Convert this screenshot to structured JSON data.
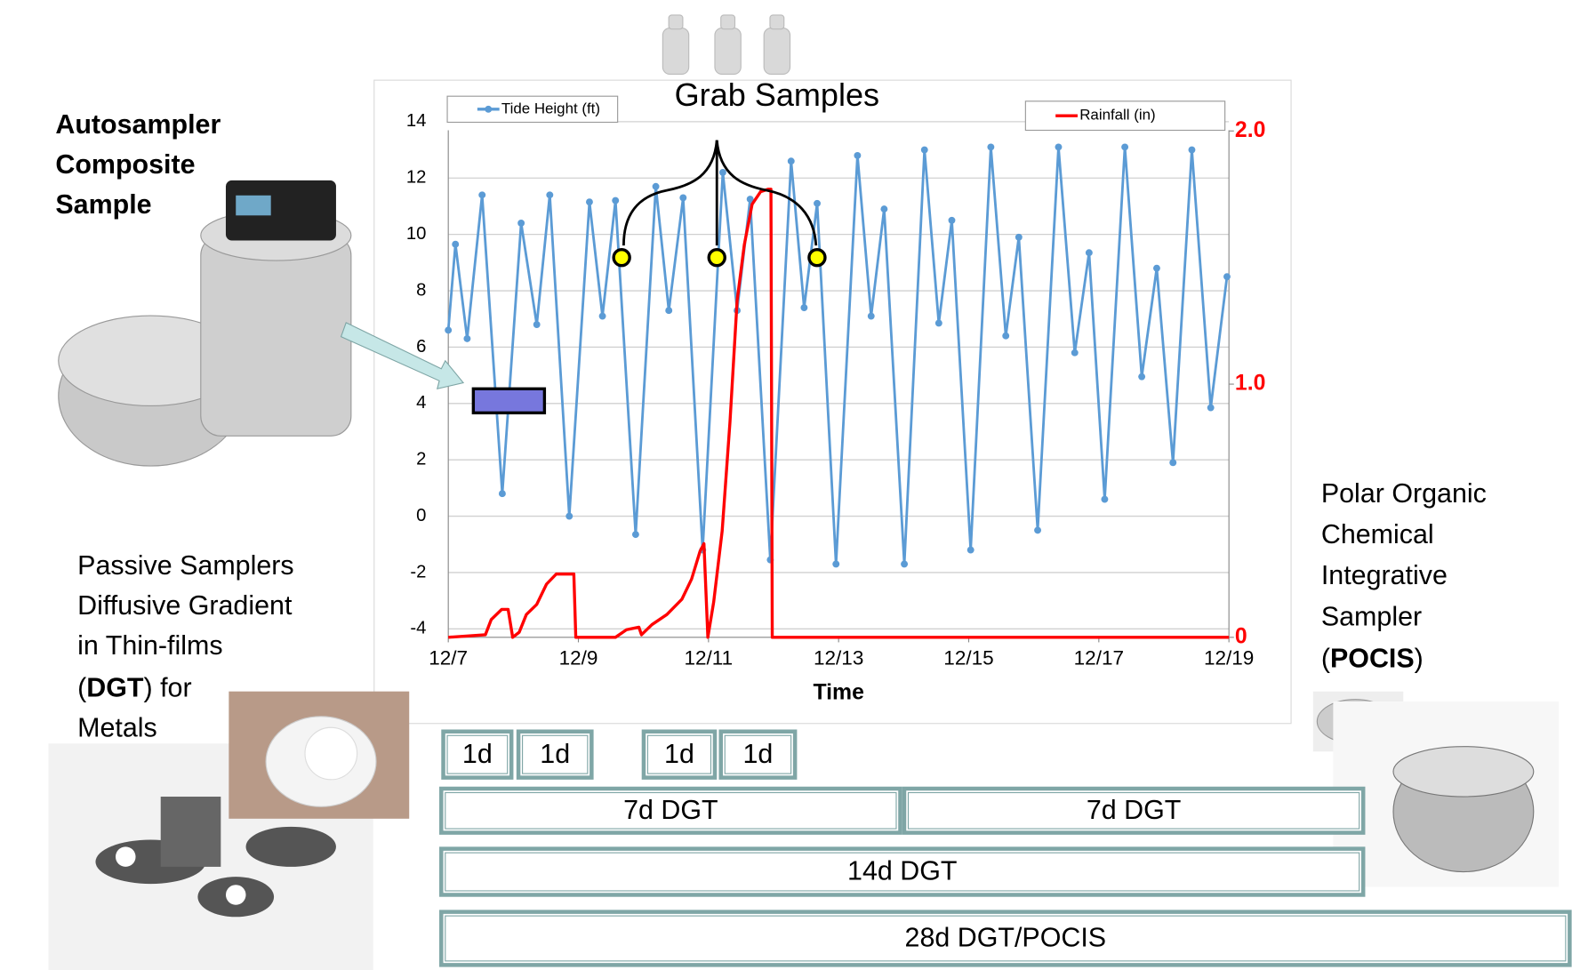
{
  "chart_data": {
    "type": "line",
    "x_title": "Time",
    "xlim": [
      0,
      12
    ],
    "xticks": [
      {
        "value": 0,
        "label": "12/7"
      },
      {
        "value": 2,
        "label": "12/9"
      },
      {
        "value": 4,
        "label": "12/11"
      },
      {
        "value": 6,
        "label": "12/13"
      },
      {
        "value": 8,
        "label": "12/15"
      },
      {
        "value": 10,
        "label": "12/17"
      },
      {
        "value": 12,
        "label": "12/19"
      }
    ],
    "ylim": [
      -4.3,
      14.3
    ],
    "yticks": [
      -4,
      -2,
      0,
      2,
      4,
      6,
      8,
      10,
      12,
      14
    ],
    "y2lim": [
      0,
      2.07
    ],
    "y2ticks": [
      0,
      {
        "value": 1,
        "label": "1.0"
      },
      {
        "value": 2,
        "label": "2.0"
      }
    ],
    "grid": true,
    "series": [
      {
        "name": "Tide Height (ft)",
        "color": "#5b9bd5",
        "x": [
          0,
          0.11,
          0.29,
          0.52,
          0.83,
          1.12,
          1.36,
          1.56,
          1.86,
          2.17,
          2.37,
          2.57,
          2.88,
          3.19,
          3.39,
          3.61,
          3.91,
          4.22,
          4.44,
          4.64,
          4.95,
          5.27,
          5.47,
          5.67,
          5.96,
          6.29,
          6.5,
          6.7,
          7.01,
          7.32,
          7.54,
          7.74,
          8.03,
          8.34,
          8.57,
          8.77,
          9.06,
          9.38,
          9.63,
          9.85,
          10.09,
          10.4,
          10.66,
          10.89,
          11.14,
          11.43,
          11.72,
          11.97
        ],
        "values": [
          6.6,
          9.65,
          6.3,
          11.4,
          0.8,
          10.4,
          6.8,
          11.4,
          0.0,
          11.15,
          7.1,
          11.2,
          -0.65,
          11.7,
          7.3,
          11.3,
          -1.2,
          12.2,
          7.3,
          11.25,
          -1.55,
          12.6,
          7.4,
          11.1,
          -1.7,
          12.8,
          7.1,
          10.9,
          -1.7,
          13.0,
          6.85,
          10.5,
          -1.2,
          13.1,
          6.4,
          9.9,
          -0.5,
          13.1,
          5.8,
          9.35,
          0.6,
          13.1,
          4.95,
          8.8,
          1.9,
          13.0,
          3.85,
          8.5
        ]
      },
      {
        "name": "Rainfall (in)",
        "color": "#ff0000",
        "axis": "y2",
        "x": [
          0,
          0.57,
          0.66,
          0.82,
          0.92,
          0.99,
          1.09,
          1.2,
          1.36,
          1.51,
          1.66,
          1.82,
          1.93,
          1.96,
          2.57,
          2.74,
          2.93,
          2.97,
          3.13,
          3.36,
          3.59,
          3.74,
          3.87,
          3.93,
          3.99,
          4.08,
          4.21,
          4.33,
          4.44,
          4.55,
          4.67,
          4.8,
          4.92,
          4.96,
          4.98,
          12
        ],
        "values": [
          0,
          0.01,
          0.07,
          0.11,
          0.11,
          0,
          0.02,
          0.09,
          0.13,
          0.21,
          0.25,
          0.25,
          0.25,
          0,
          0,
          0.03,
          0.04,
          0.01,
          0.05,
          0.09,
          0.15,
          0.23,
          0.34,
          0.37,
          0,
          0.14,
          0.42,
          0.85,
          1.33,
          1.55,
          1.71,
          1.76,
          1.77,
          1.77,
          0,
          0
        ]
      }
    ]
  },
  "annotations": {
    "grab_samples": "Grab Samples",
    "autosampler": [
      "Autosampler",
      "Composite",
      "Sample"
    ],
    "passive": [
      "Passive Samplers",
      "Diffusive Gradient",
      "in Thin-films",
      [
        "(",
        "DGT",
        ") for"
      ],
      "Metals"
    ],
    "pocis": [
      "Polar Organic",
      "Chemical",
      "Integrative",
      "Sampler",
      [
        "(",
        "POCIS",
        ")"
      ]
    ]
  },
  "timeline": [
    "1d",
    "1d",
    "1d",
    "1d",
    "7d DGT",
    "7d DGT",
    "14d DGT",
    "28d DGT/POCIS"
  ]
}
